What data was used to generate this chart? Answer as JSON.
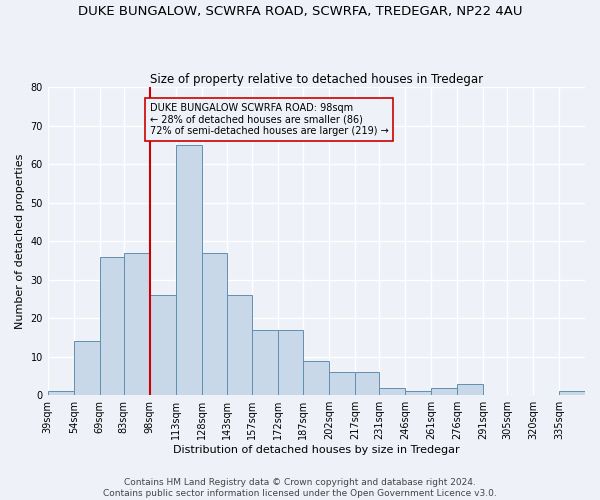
{
  "title": "DUKE BUNGALOW, SCWRFA ROAD, SCWRFA, TREDEGAR, NP22 4AU",
  "subtitle": "Size of property relative to detached houses in Tredegar",
  "xlabel": "Distribution of detached houses by size in Tredegar",
  "ylabel": "Number of detached properties",
  "bin_labels": [
    "39sqm",
    "54sqm",
    "69sqm",
    "83sqm",
    "98sqm",
    "113sqm",
    "128sqm",
    "143sqm",
    "157sqm",
    "172sqm",
    "187sqm",
    "202sqm",
    "217sqm",
    "231sqm",
    "246sqm",
    "261sqm",
    "276sqm",
    "291sqm",
    "305sqm",
    "320sqm",
    "335sqm"
  ],
  "bin_edges": [
    39,
    54,
    69,
    83,
    98,
    113,
    128,
    143,
    157,
    172,
    187,
    202,
    217,
    231,
    246,
    261,
    276,
    291,
    305,
    320,
    335,
    350
  ],
  "counts": [
    1,
    14,
    36,
    37,
    26,
    65,
    37,
    26,
    17,
    17,
    9,
    6,
    6,
    2,
    1,
    2,
    3,
    0,
    0,
    0,
    1
  ],
  "bar_color": "#c8d8e8",
  "bar_edge_color": "#6090b0",
  "vline_x": 98,
  "vline_color": "#cc0000",
  "annotation_text": "DUKE BUNGALOW SCWRFA ROAD: 98sqm\n← 28% of detached houses are smaller (86)\n72% of semi-detached houses are larger (219) →",
  "annotation_box_edge": "#cc0000",
  "ylim": [
    0,
    80
  ],
  "yticks": [
    0,
    10,
    20,
    30,
    40,
    50,
    60,
    70,
    80
  ],
  "footer_line1": "Contains HM Land Registry data © Crown copyright and database right 2024.",
  "footer_line2": "Contains public sector information licensed under the Open Government Licence v3.0.",
  "bg_color": "#eef2f8",
  "grid_color": "#ffffff",
  "title_fontsize": 9.5,
  "subtitle_fontsize": 8.5,
  "axis_label_fontsize": 8,
  "tick_fontsize": 7,
  "footer_fontsize": 6.5
}
